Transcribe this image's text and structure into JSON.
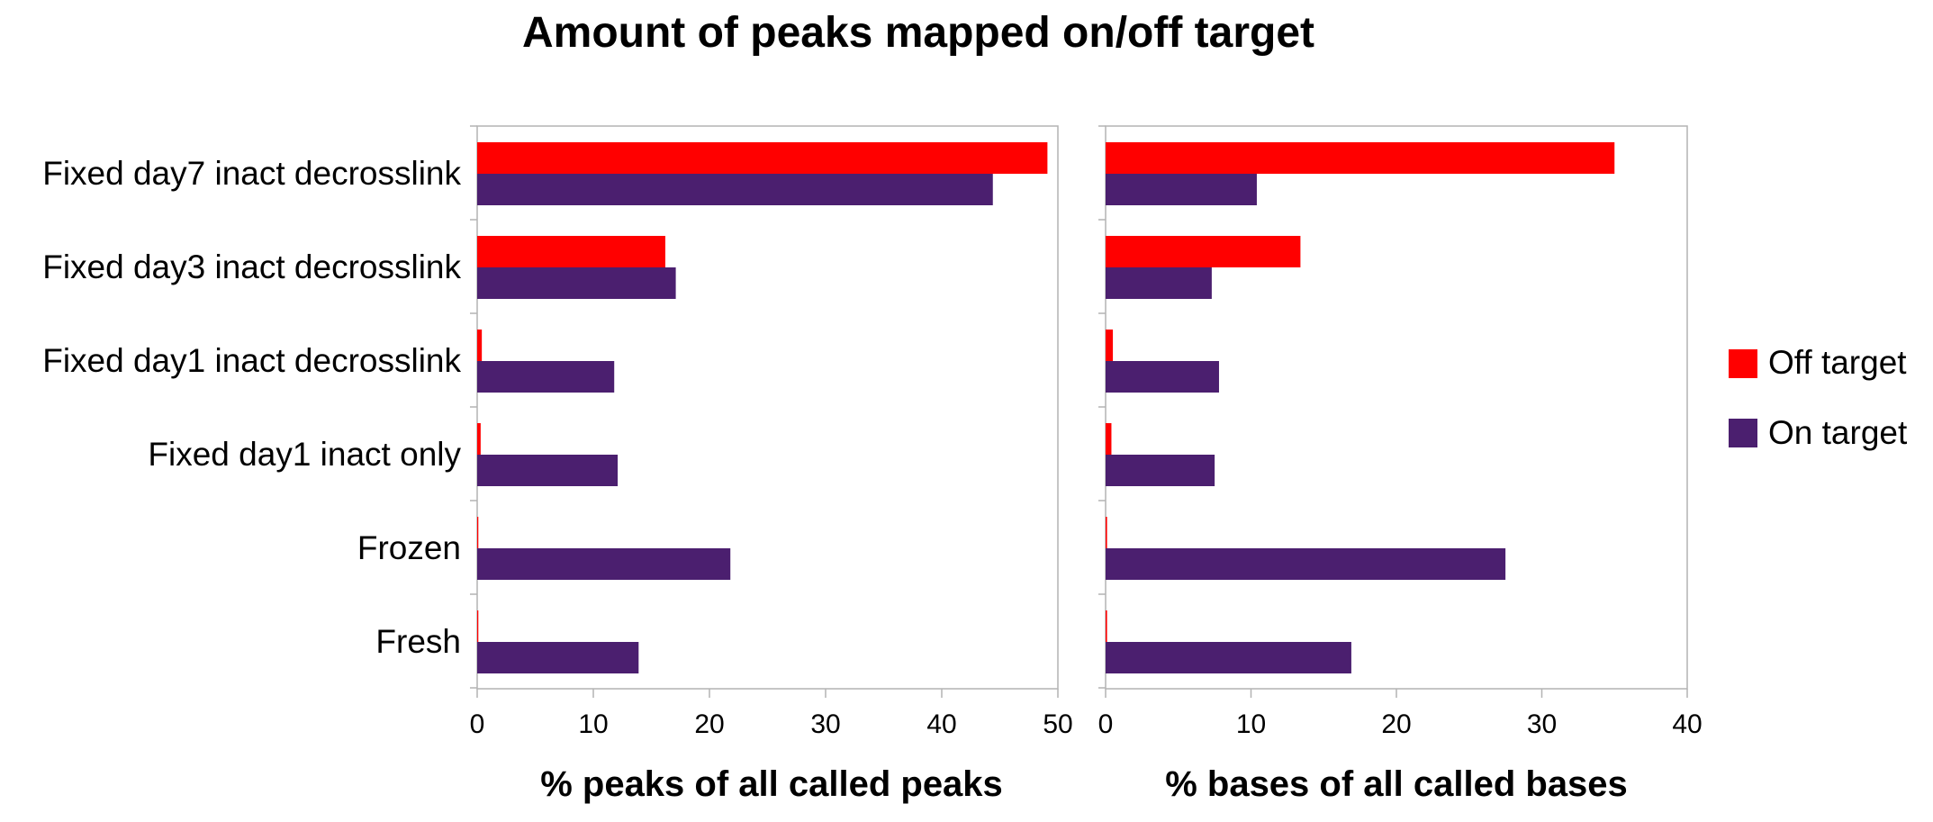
{
  "chart_data": {
    "type": "bar",
    "orientation": "horizontal",
    "title": "Amount of peaks mapped on/off target",
    "categories": [
      "Fixed day7 inact decrosslink",
      "Fixed day3 inact decrosslink",
      "Fixed day1 inact decrosslink",
      "Fixed day1 inact only",
      "Frozen",
      "Fresh"
    ],
    "legend": {
      "position": "right",
      "entries": [
        {
          "name": "Off target",
          "color": "#ff0000"
        },
        {
          "name": "On target",
          "color": "#4b1f6f"
        }
      ]
    },
    "panels": [
      {
        "xlabel": "% peaks of all called peaks",
        "xlim": [
          0,
          50
        ],
        "ticks": [
          "0",
          "10",
          "20",
          "30",
          "40",
          "50"
        ],
        "grid": false,
        "series": [
          {
            "name": "Off target",
            "color": "#ff0000",
            "values": [
              49.1,
              16.2,
              0.4,
              0.3,
              0.1,
              0.1
            ]
          },
          {
            "name": "On target",
            "color": "#4b1f6f",
            "values": [
              44.4,
              17.1,
              11.8,
              12.1,
              21.8,
              13.9
            ]
          }
        ]
      },
      {
        "xlabel": "% bases of all called bases",
        "xlim": [
          0,
          40
        ],
        "ticks": [
          "0",
          "10",
          "20",
          "30",
          "40"
        ],
        "grid": false,
        "series": [
          {
            "name": "Off target",
            "color": "#ff0000",
            "values": [
              35.0,
              13.4,
              0.5,
              0.4,
              0.1,
              0.1
            ]
          },
          {
            "name": "On target",
            "color": "#4b1f6f",
            "values": [
              10.4,
              7.3,
              7.8,
              7.5,
              27.5,
              16.9
            ]
          }
        ]
      }
    ]
  }
}
